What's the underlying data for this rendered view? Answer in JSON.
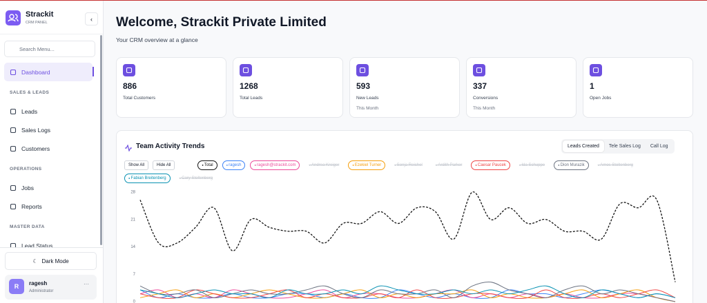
{
  "sidebar": {
    "brand": "Strackit",
    "subtitle": "CRM PANEL",
    "search_placeholder": "Search Menu...",
    "active": "Dashboard",
    "sections": [
      {
        "items": [
          "Dashboard"
        ]
      },
      {
        "heading": "SALES & LEADS",
        "items": [
          "Leads",
          "Sales Logs",
          "Customers"
        ]
      },
      {
        "heading": "OPERATIONS",
        "items": [
          "Jobs",
          "Reports"
        ]
      },
      {
        "heading": "MASTER DATA",
        "items": [
          "Lead Status"
        ]
      }
    ],
    "dark_mode": "Dark Mode",
    "user": {
      "initial": "R",
      "name": "ragesh",
      "role": "Administrator"
    }
  },
  "header": {
    "title": "Welcome, Strackit Private Limited",
    "subtitle": "Your CRM overview at a glance"
  },
  "stats": [
    {
      "value": 886,
      "label": "Total Customers"
    },
    {
      "value": 1268,
      "label": "Total Leads"
    },
    {
      "value": 593,
      "label": "New Leads",
      "note": "This Month"
    },
    {
      "value": 337,
      "label": "Conversions",
      "note": "This Month"
    },
    {
      "value": 1,
      "label": "Open Jobs"
    }
  ],
  "chart_tabs": {
    "items": [
      "Leads Created",
      "Tele Sales Log",
      "Call Log"
    ],
    "active": "Leads Created"
  },
  "chart_buttons": [
    "Show All",
    "Hide All"
  ],
  "chart_data": {
    "type": "line",
    "title": "Team Activity Trends",
    "ylim": [
      0,
      28
    ],
    "yticks": [
      0,
      7,
      14,
      21,
      28
    ],
    "series": [
      {
        "name": "Total",
        "color": "#111111",
        "dashed": true,
        "values": [
          26,
          15,
          15,
          19,
          24,
          13,
          21,
          19,
          18,
          18,
          15,
          20,
          20,
          23,
          20,
          24,
          23,
          16,
          28,
          21,
          24,
          20,
          21,
          18,
          18,
          16,
          25,
          24,
          26,
          5
        ]
      },
      {
        "name": "ragesh",
        "color": "#3b82f6",
        "values": [
          3,
          1,
          2,
          1,
          1,
          2,
          1,
          1,
          2,
          2,
          1,
          2,
          1,
          1,
          3,
          2,
          1,
          2,
          1,
          1,
          3,
          2,
          2,
          1,
          2,
          3,
          2,
          1,
          2,
          1
        ]
      },
      {
        "name": "ragesh@strackit.com",
        "color": "#ec4899",
        "values": [
          2,
          3,
          1,
          2,
          1,
          3,
          2,
          1,
          1,
          2,
          3,
          1,
          2,
          2,
          1,
          1,
          2,
          3,
          1,
          2,
          1,
          2,
          1,
          2,
          1,
          1,
          2,
          2,
          1,
          0
        ]
      },
      {
        "name": "Andrea Kreiger",
        "color": "#c4c8cf",
        "hidden": true
      },
      {
        "name": "Ezekiel Turner",
        "color": "#f59e0b",
        "values": [
          1,
          2,
          3,
          1,
          2,
          1,
          2,
          3,
          2,
          1,
          1,
          2,
          3,
          1,
          2,
          1,
          2,
          2,
          3,
          1,
          2,
          1,
          1,
          2,
          3,
          1,
          2,
          3,
          1,
          0
        ]
      },
      {
        "name": "Sonja Reichel",
        "color": "#c4c8cf",
        "hidden": true
      },
      {
        "name": "Ardith Parker",
        "color": "#c4c8cf",
        "hidden": true
      },
      {
        "name": "Caesar Paucek",
        "color": "#ef4444",
        "values": [
          2,
          1,
          1,
          3,
          2,
          1,
          1,
          2,
          3,
          1,
          2,
          1,
          1,
          2,
          1,
          3,
          1,
          1,
          2,
          2,
          1,
          1,
          3,
          1,
          1,
          2,
          1,
          2,
          3,
          1
        ]
      },
      {
        "name": "Ida Schuppe",
        "color": "#c4c8cf",
        "hidden": true
      },
      {
        "name": "Dion Murazik",
        "color": "#6b7280",
        "values": [
          4,
          2,
          2,
          3,
          1,
          2,
          3,
          2,
          2,
          3,
          4,
          2,
          1,
          3,
          2,
          2,
          3,
          1,
          4,
          5,
          3,
          2,
          1,
          3,
          4,
          2,
          3,
          2,
          1,
          0
        ]
      },
      {
        "name": "Amos Stoltenberg",
        "color": "#c4c8cf",
        "hidden": true
      },
      {
        "name": "Fabian Breitenberg",
        "color": "#0891b2",
        "values": [
          3,
          2,
          1,
          2,
          3,
          2,
          2,
          1,
          3,
          2,
          2,
          3,
          2,
          4,
          3,
          2,
          2,
          3,
          2,
          3,
          2,
          3,
          4,
          2,
          1,
          3,
          2,
          1,
          2,
          1
        ]
      },
      {
        "name": "Cary Stoltenberg",
        "color": "#c4c8cf",
        "hidden": true
      }
    ]
  }
}
